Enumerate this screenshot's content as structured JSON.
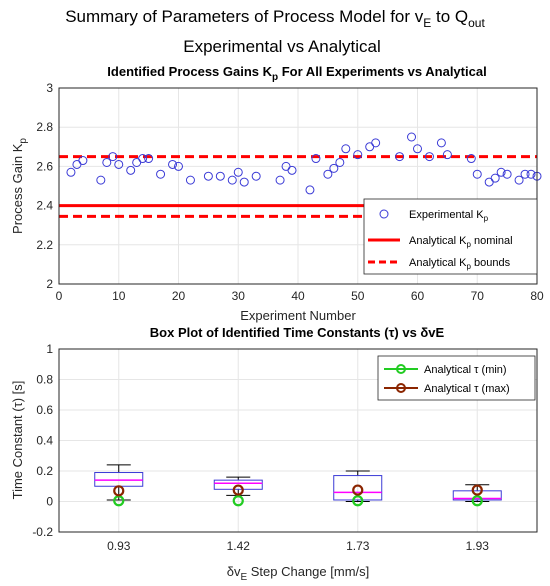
{
  "figure": {
    "title_line1": "Summary of Parameters of Process Model for  v",
    "title_line1_sub": "E",
    "title_line1_mid": " to Q",
    "title_line1_sub2": "out",
    "title_line2": "Experimental vs Analytical"
  },
  "chart_data": [
    {
      "type": "scatter",
      "title": "Identified Process Gains K",
      "title_sub": "p",
      "title_suffix": " For All Experiments vs Analytical",
      "xlabel": "Experiment Number",
      "ylabel": "Process Gain K",
      "ylabel_sub": "p",
      "xlim": [
        0,
        80
      ],
      "ylim": [
        2,
        3
      ],
      "xticks": [
        "0",
        "10",
        "20",
        "30",
        "40",
        "50",
        "60",
        "70",
        "80"
      ],
      "yticks": [
        "2",
        "2.2",
        "2.4",
        "2.6",
        "2.8",
        "3"
      ],
      "grid": true,
      "legend_position": "bottom-right",
      "colors": {
        "experimental": "#3a3ad6",
        "analytical": "#ff0000"
      },
      "series": [
        {
          "name": "Experimental K",
          "name_sub": "p",
          "marker": "circle",
          "x": [
            2,
            3,
            4,
            7,
            8,
            9,
            10,
            12,
            13,
            14,
            15,
            17,
            19,
            20,
            22,
            25,
            27,
            29,
            30,
            31,
            33,
            37,
            38,
            39,
            42,
            43,
            45,
            46,
            47,
            48,
            50,
            52,
            53,
            57,
            59,
            60,
            62,
            64,
            65,
            69,
            70,
            72,
            73,
            74,
            75,
            77,
            78,
            79,
            80
          ],
          "y": [
            2.57,
            2.61,
            2.63,
            2.53,
            2.62,
            2.65,
            2.61,
            2.58,
            2.62,
            2.64,
            2.64,
            2.56,
            2.61,
            2.6,
            2.53,
            2.55,
            2.55,
            2.53,
            2.57,
            2.52,
            2.55,
            2.53,
            2.6,
            2.58,
            2.48,
            2.64,
            2.56,
            2.59,
            2.62,
            2.69,
            2.66,
            2.7,
            2.72,
            2.65,
            2.75,
            2.69,
            2.65,
            2.72,
            2.66,
            2.64,
            2.56,
            2.52,
            2.54,
            2.57,
            2.56,
            2.53,
            2.56,
            2.56,
            2.55
          ]
        },
        {
          "name": "Analytical K",
          "name_sub": "p",
          "name_suffix": " nominal",
          "line": "solid",
          "y": 2.4
        },
        {
          "name": "Analytical K",
          "name_sub": "p",
          "name_suffix": " bounds",
          "line": "dashed",
          "y": [
            2.345,
            2.65
          ]
        }
      ]
    },
    {
      "type": "box",
      "title": "Box Plot of Identified Time Constants (τ) vs δvE",
      "xlabel": "δv",
      "xlabel_sub": "E",
      "xlabel_suffix": " Step Change [mm/s]",
      "ylabel": "Time Constant (τ) [s]",
      "ylim": [
        -0.2,
        1
      ],
      "yticks": [
        "-0.2",
        "0",
        "0.2",
        "0.4",
        "0.6",
        "0.8",
        "1"
      ],
      "categories": [
        "0.93",
        "1.42",
        "1.73",
        "1.93"
      ],
      "grid": true,
      "legend_position": "top-right",
      "colors": {
        "box": "#3a3ad6",
        "median": "#ff00ff",
        "min": "#22cc22",
        "max": "#8b2500"
      },
      "boxes": [
        {
          "min": 0.01,
          "q1": 0.1,
          "median": 0.14,
          "q3": 0.19,
          "max": 0.24
        },
        {
          "min": 0.04,
          "q1": 0.08,
          "median": 0.12,
          "q3": 0.14,
          "max": 0.16
        },
        {
          "min": 0.0,
          "q1": 0.01,
          "median": 0.06,
          "q3": 0.17,
          "max": 0.2
        },
        {
          "min": 0.0,
          "q1": 0.01,
          "median": 0.02,
          "q3": 0.07,
          "max": 0.11
        }
      ],
      "series": [
        {
          "name": "Analytical τ (min)",
          "values": [
            0.005,
            0.005,
            0.005,
            0.005
          ]
        },
        {
          "name": "Analytical τ (max)",
          "values": [
            0.07,
            0.075,
            0.075,
            0.075
          ]
        }
      ]
    }
  ]
}
